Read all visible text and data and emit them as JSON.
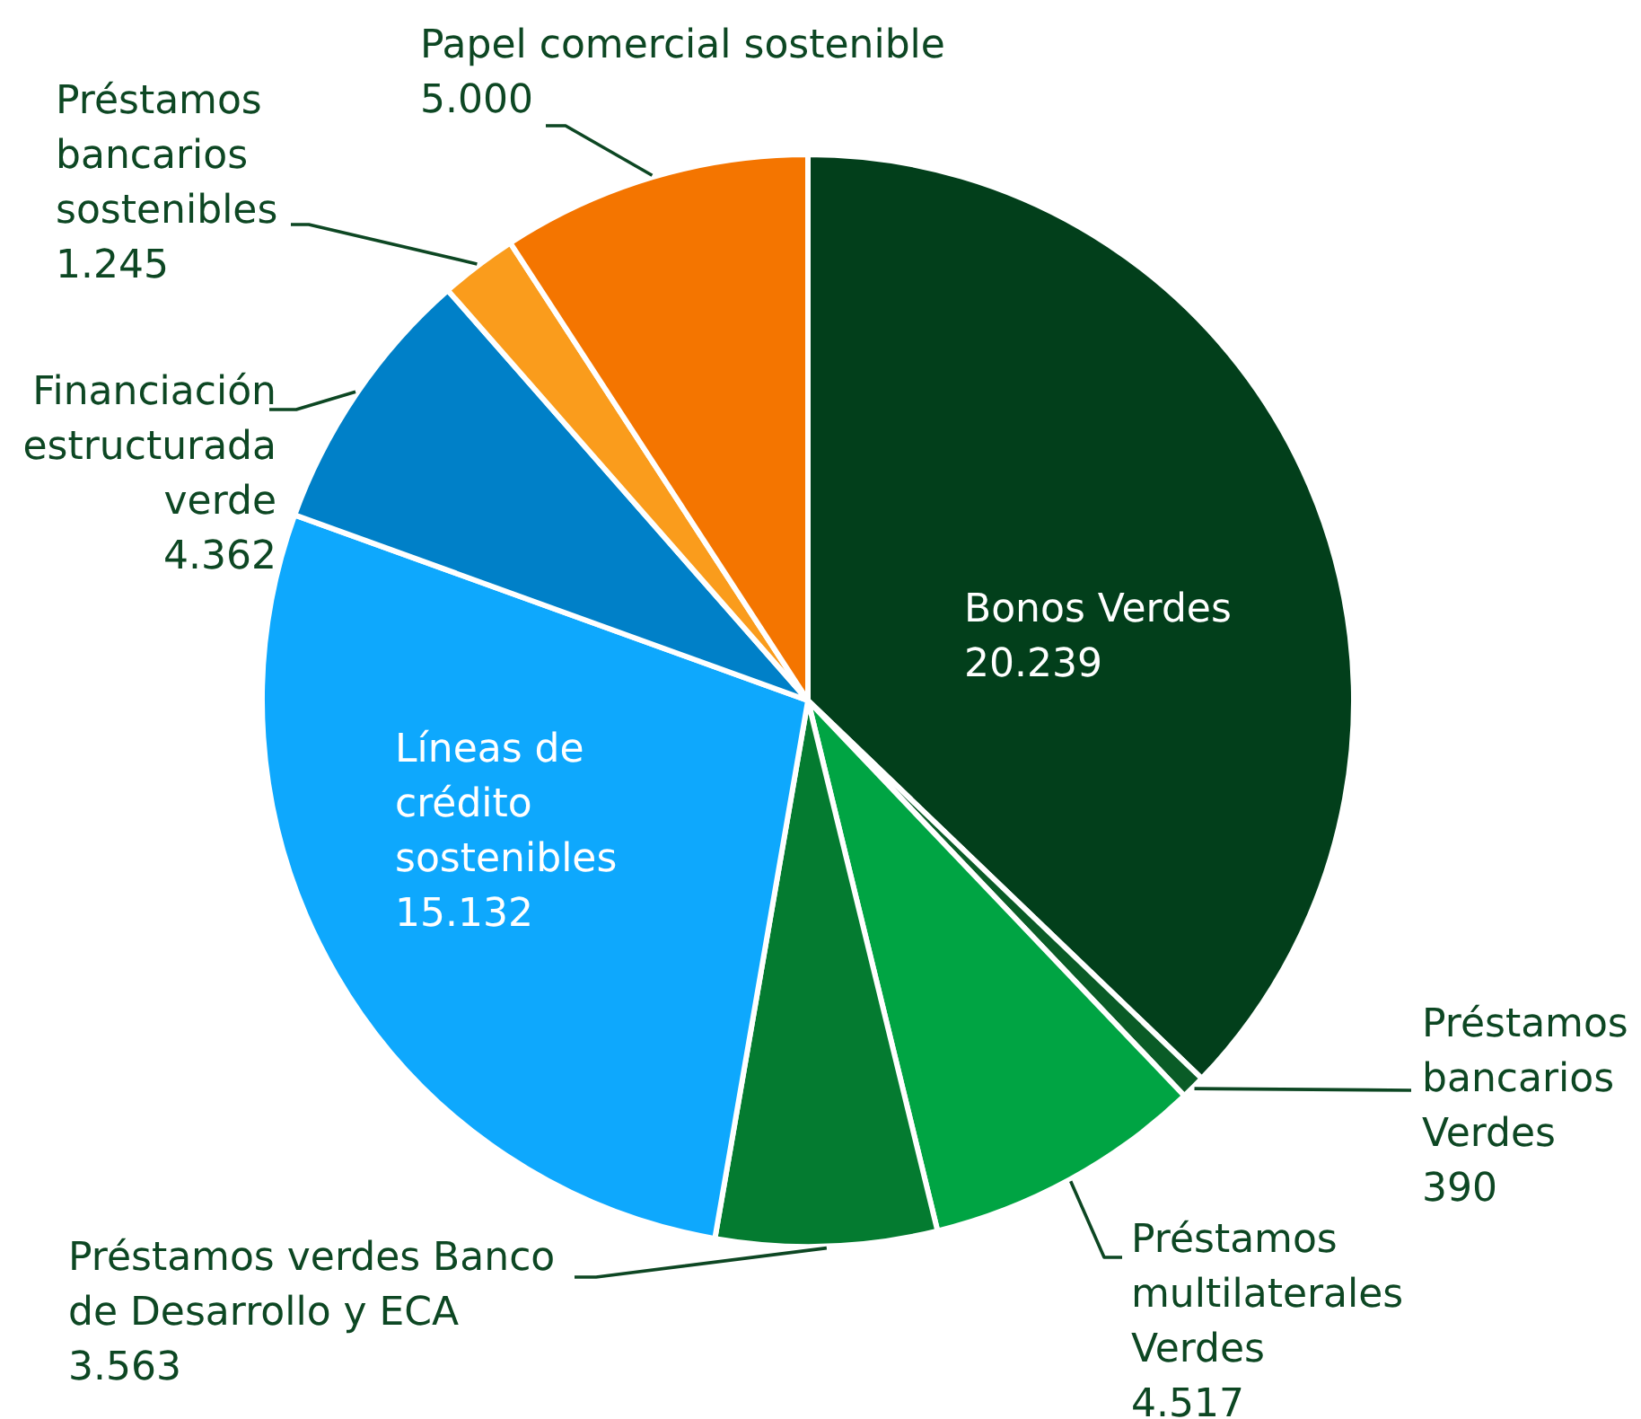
{
  "chart_data": {
    "type": "pie",
    "categories": [
      "Bonos Verdes",
      "Préstamos bancarios Verdes",
      "Préstamos multilaterales Verdes",
      "Préstamos verdes Banco de Desarrollo y ECA",
      "Líneas de crédito sostenibles",
      "Financiación estructurada verde",
      "Préstamos bancarios sostenibles",
      "Papel comercial sostenible"
    ],
    "values": [
      20239,
      390,
      4517,
      3563,
      15132,
      4362,
      1245,
      5000
    ],
    "value_labels": [
      "20.239",
      "390",
      "4.517",
      "3.563",
      "15.132",
      "4.362",
      "1.245",
      "5.000"
    ],
    "colors": [
      "#023f1b",
      "#0a5c27",
      "#00a443",
      "#047b30",
      "#0ea8fd",
      "#0080c8",
      "#fa9c1c",
      "#f47500"
    ]
  }
}
